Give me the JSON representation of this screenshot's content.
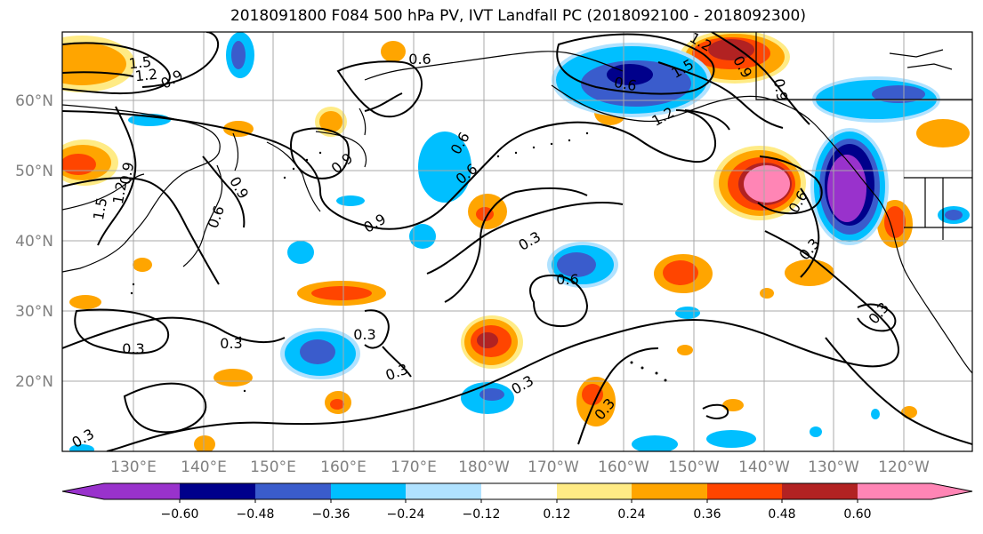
{
  "title": "2018091800 F084 500 hPa PV, IVT Landfall PC (2018092100 - 2018092300)",
  "latitude_labels": [
    "60°N",
    "50°N",
    "40°N",
    "30°N",
    "20°N"
  ],
  "longitude_labels": [
    "130°E",
    "140°E",
    "150°E",
    "160°E",
    "170°E",
    "180°W",
    "170°W",
    "160°W",
    "150°W",
    "140°W",
    "130°W",
    "120°W"
  ],
  "contour_labels": [
    "1.5",
    "1.2",
    "0.9",
    "0.6",
    "0.6",
    "1.5",
    "1.2",
    "0.9",
    "1.2",
    "0.9",
    "0.6",
    "0.9",
    "0.6",
    "0.9",
    "0.6",
    "0.9",
    "1.5",
    "1.2",
    "0.9",
    "0.6",
    "0.3",
    "0.3",
    "0.6",
    "0.3",
    "0.3",
    "0.3",
    "0.3",
    "0.3",
    "0.3",
    "0.3",
    "0.3"
  ],
  "colorbar": {
    "ticks": [
      "−0.60",
      "−0.48",
      "−0.36",
      "−0.24",
      "−0.12",
      "0.12",
      "0.24",
      "0.36",
      "0.48",
      "0.60"
    ],
    "colors": [
      "#9932cc",
      "#00008b",
      "#3a5ccc",
      "#00bfff",
      "#b0e2ff",
      "#ffffff",
      "#ffeb85",
      "#ffa500",
      "#ff4500",
      "#b22222",
      "#ff85b5"
    ]
  },
  "palette": {
    "neg_strong": "#9932cc",
    "neg_darkblue": "#00008b",
    "neg_royal": "#3a5ccc",
    "neg_sky": "#00bfff",
    "neg_light": "#b0e2ff",
    "pos_yellow": "#ffeb85",
    "pos_orange": "#ffa500",
    "pos_red": "#ff4500",
    "pos_darkred": "#b22222",
    "pos_pink": "#ff85b5"
  }
}
